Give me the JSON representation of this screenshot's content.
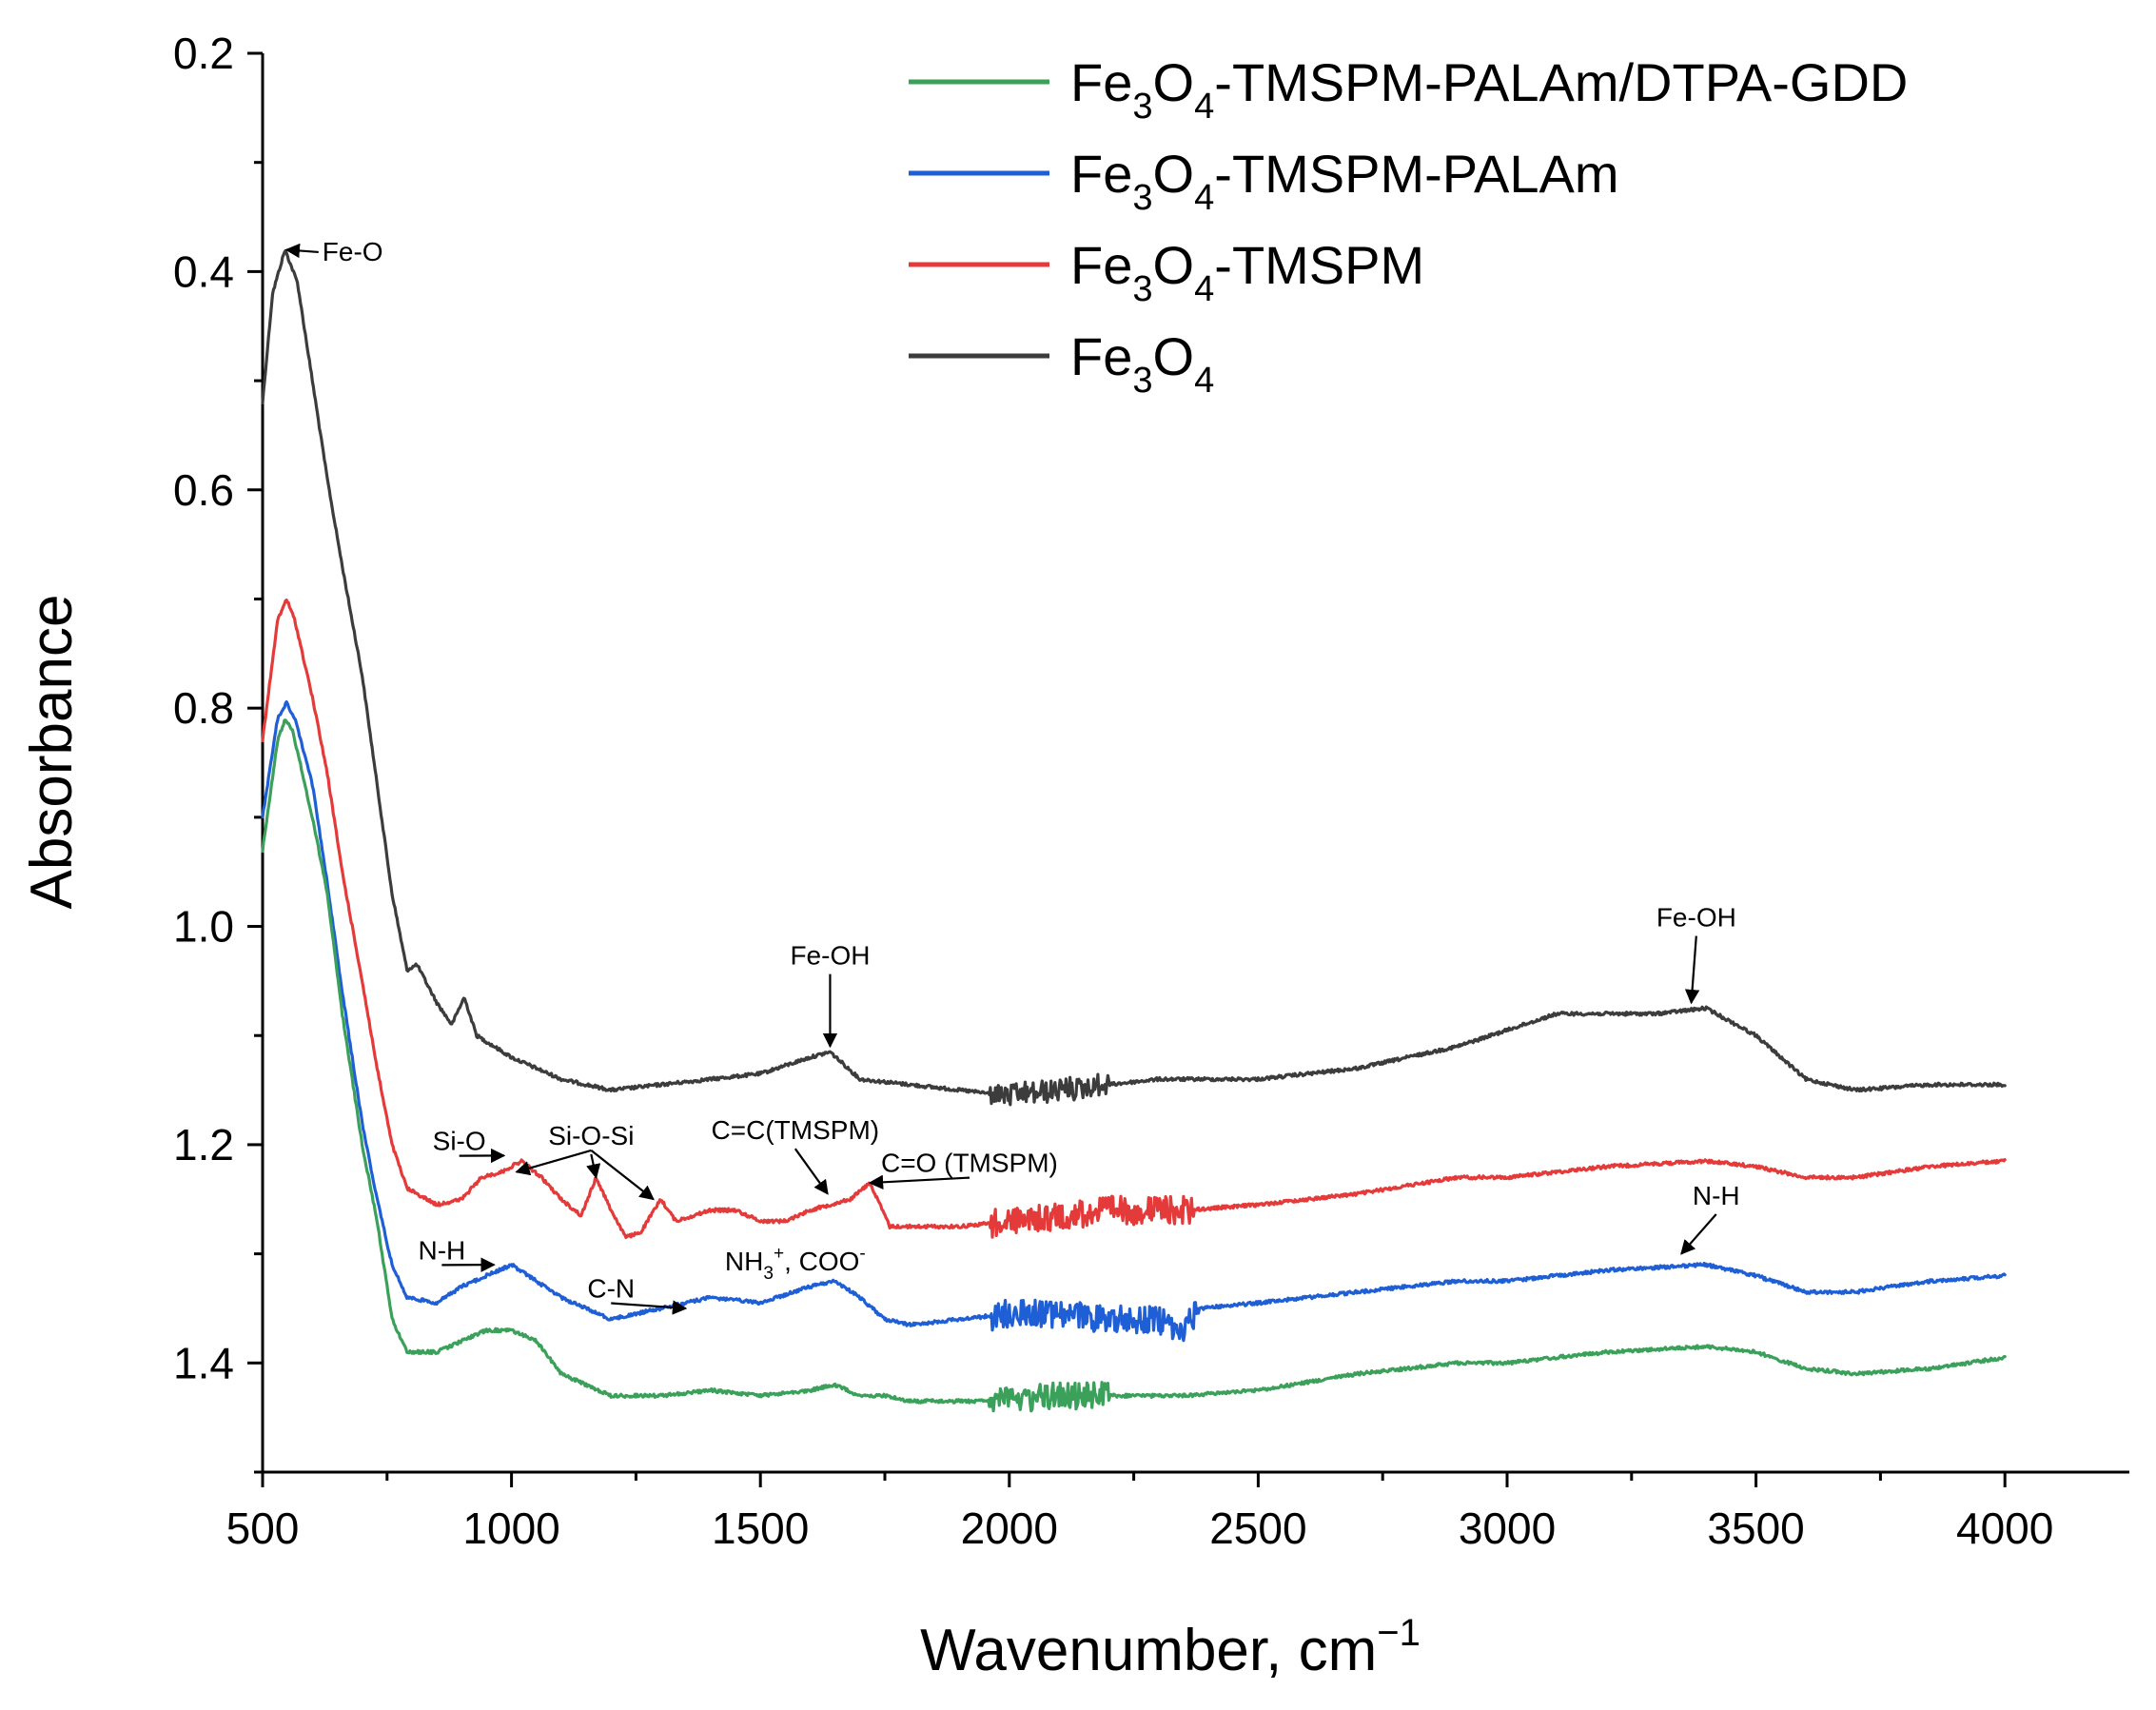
{
  "chart_data": {
    "type": "line",
    "xlabel": "Wavenumber, cm",
    "xlabel_superscript": "−1",
    "ylabel": "Absorbance",
    "xlim": [
      500,
      4250
    ],
    "ylim": [
      1.5,
      0.2
    ],
    "y_inverted": true,
    "xticks": [
      500,
      1000,
      1500,
      2000,
      2500,
      3000,
      3500,
      4000
    ],
    "xtick_labels": [
      "500",
      "1000",
      "1500",
      "2000",
      "2500",
      "3000",
      "3500",
      "4000"
    ],
    "yticks": [
      0.2,
      0.4,
      0.6,
      0.8,
      1.0,
      1.2,
      1.4
    ],
    "ytick_labels": [
      "0.2",
      "0.4",
      "0.6",
      "0.8",
      "1.0",
      "1.2",
      "1.4"
    ],
    "grid": false,
    "legend_position": "top-right",
    "series": [
      {
        "name": "Fe3O4-TMSPM-PALAm/DTPA-GDD",
        "legend_parts": [
          [
            "Fe",
            ""
          ],
          [
            "3",
            "sub"
          ],
          [
            "O",
            ""
          ],
          [
            "4",
            "sub"
          ],
          [
            "-TMSPM-PALAm/DTPA-GDD",
            ""
          ]
        ],
        "color": "#3aa05a",
        "points": [
          [
            500,
            0.93
          ],
          [
            530,
            0.83
          ],
          [
            545,
            0.81
          ],
          [
            560,
            0.82
          ],
          [
            600,
            0.9
          ],
          [
            630,
            0.97
          ],
          [
            660,
            1.08
          ],
          [
            700,
            1.2
          ],
          [
            730,
            1.27
          ],
          [
            760,
            1.36
          ],
          [
            790,
            1.39
          ],
          [
            850,
            1.39
          ],
          [
            900,
            1.38
          ],
          [
            950,
            1.37
          ],
          [
            1000,
            1.37
          ],
          [
            1050,
            1.38
          ],
          [
            1100,
            1.41
          ],
          [
            1150,
            1.42
          ],
          [
            1200,
            1.43
          ],
          [
            1250,
            1.43
          ],
          [
            1300,
            1.43
          ],
          [
            1400,
            1.425
          ],
          [
            1500,
            1.43
          ],
          [
            1600,
            1.425
          ],
          [
            1650,
            1.42
          ],
          [
            1700,
            1.43
          ],
          [
            1750,
            1.43
          ],
          [
            1800,
            1.435
          ],
          [
            1900,
            1.435
          ],
          [
            2000,
            1.435
          ],
          [
            2100,
            1.43
          ],
          [
            2200,
            1.43
          ],
          [
            2350,
            1.43
          ],
          [
            2500,
            1.425
          ],
          [
            2700,
            1.41
          ],
          [
            2900,
            1.4
          ],
          [
            3000,
            1.4
          ],
          [
            3200,
            1.39
          ],
          [
            3400,
            1.385
          ],
          [
            3500,
            1.39
          ],
          [
            3600,
            1.405
          ],
          [
            3700,
            1.41
          ],
          [
            3850,
            1.405
          ],
          [
            4000,
            1.395
          ]
        ]
      },
      {
        "name": "Fe3O4-TMSPM-PALAm",
        "legend_parts": [
          [
            "Fe",
            ""
          ],
          [
            "3",
            "sub"
          ],
          [
            "O",
            ""
          ],
          [
            "4",
            "sub"
          ],
          [
            "-TMSPM-PALAm",
            ""
          ]
        ],
        "color": "#1f5fd6",
        "points": [
          [
            500,
            0.9
          ],
          [
            530,
            0.81
          ],
          [
            548,
            0.795
          ],
          [
            565,
            0.81
          ],
          [
            600,
            0.87
          ],
          [
            630,
            0.96
          ],
          [
            660,
            1.06
          ],
          [
            700,
            1.18
          ],
          [
            730,
            1.25
          ],
          [
            760,
            1.31
          ],
          [
            790,
            1.34
          ],
          [
            850,
            1.345
          ],
          [
            900,
            1.33
          ],
          [
            950,
            1.32
          ],
          [
            1000,
            1.31
          ],
          [
            1050,
            1.325
          ],
          [
            1100,
            1.34
          ],
          [
            1150,
            1.35
          ],
          [
            1200,
            1.36
          ],
          [
            1250,
            1.355
          ],
          [
            1300,
            1.35
          ],
          [
            1350,
            1.345
          ],
          [
            1400,
            1.34
          ],
          [
            1500,
            1.345
          ],
          [
            1600,
            1.33
          ],
          [
            1650,
            1.325
          ],
          [
            1700,
            1.34
          ],
          [
            1750,
            1.36
          ],
          [
            1800,
            1.365
          ],
          [
            1900,
            1.36
          ],
          [
            2000,
            1.355
          ],
          [
            2100,
            1.355
          ],
          [
            2200,
            1.36
          ],
          [
            2300,
            1.36
          ],
          [
            2350,
            1.37
          ],
          [
            2380,
            1.35
          ],
          [
            2500,
            1.345
          ],
          [
            2700,
            1.335
          ],
          [
            2900,
            1.325
          ],
          [
            3000,
            1.325
          ],
          [
            3200,
            1.315
          ],
          [
            3400,
            1.31
          ],
          [
            3500,
            1.32
          ],
          [
            3600,
            1.335
          ],
          [
            3700,
            1.335
          ],
          [
            3850,
            1.325
          ],
          [
            4000,
            1.32
          ]
        ]
      },
      {
        "name": "Fe3O4-TMSPM",
        "legend_parts": [
          [
            "Fe",
            ""
          ],
          [
            "3",
            "sub"
          ],
          [
            "O",
            ""
          ],
          [
            "4",
            "sub"
          ],
          [
            "-TMSPM",
            ""
          ]
        ],
        "color": "#e53a3a",
        "points": [
          [
            500,
            0.83
          ],
          [
            530,
            0.72
          ],
          [
            548,
            0.7
          ],
          [
            565,
            0.72
          ],
          [
            600,
            0.79
          ],
          [
            630,
            0.86
          ],
          [
            660,
            0.95
          ],
          [
            700,
            1.05
          ],
          [
            730,
            1.13
          ],
          [
            760,
            1.2
          ],
          [
            790,
            1.24
          ],
          [
            850,
            1.255
          ],
          [
            900,
            1.25
          ],
          [
            940,
            1.23
          ],
          [
            980,
            1.225
          ],
          [
            1020,
            1.215
          ],
          [
            1060,
            1.23
          ],
          [
            1100,
            1.25
          ],
          [
            1140,
            1.265
          ],
          [
            1170,
            1.23
          ],
          [
            1200,
            1.26
          ],
          [
            1230,
            1.285
          ],
          [
            1260,
            1.28
          ],
          [
            1300,
            1.25
          ],
          [
            1330,
            1.27
          ],
          [
            1400,
            1.26
          ],
          [
            1450,
            1.26
          ],
          [
            1500,
            1.27
          ],
          [
            1550,
            1.27
          ],
          [
            1600,
            1.26
          ],
          [
            1640,
            1.255
          ],
          [
            1680,
            1.25
          ],
          [
            1720,
            1.235
          ],
          [
            1760,
            1.275
          ],
          [
            1800,
            1.275
          ],
          [
            1900,
            1.275
          ],
          [
            2000,
            1.27
          ],
          [
            2100,
            1.265
          ],
          [
            2200,
            1.26
          ],
          [
            2300,
            1.26
          ],
          [
            2360,
            1.26
          ],
          [
            2500,
            1.255
          ],
          [
            2700,
            1.245
          ],
          [
            2900,
            1.23
          ],
          [
            3000,
            1.23
          ],
          [
            3200,
            1.22
          ],
          [
            3400,
            1.215
          ],
          [
            3500,
            1.22
          ],
          [
            3600,
            1.23
          ],
          [
            3700,
            1.23
          ],
          [
            3850,
            1.22
          ],
          [
            4000,
            1.215
          ]
        ]
      },
      {
        "name": "Fe3O4",
        "legend_parts": [
          [
            "Fe",
            ""
          ],
          [
            "3",
            "sub"
          ],
          [
            "O",
            ""
          ],
          [
            "4",
            "sub"
          ]
        ],
        "color": "#3c3c3c",
        "points": [
          [
            500,
            0.52
          ],
          [
            520,
            0.42
          ],
          [
            545,
            0.38
          ],
          [
            570,
            0.41
          ],
          [
            600,
            0.5
          ],
          [
            630,
            0.59
          ],
          [
            660,
            0.67
          ],
          [
            700,
            0.77
          ],
          [
            730,
            0.87
          ],
          [
            760,
            0.97
          ],
          [
            790,
            1.04
          ],
          [
            810,
            1.035
          ],
          [
            850,
            1.07
          ],
          [
            880,
            1.09
          ],
          [
            905,
            1.065
          ],
          [
            930,
            1.1
          ],
          [
            1000,
            1.12
          ],
          [
            1100,
            1.14
          ],
          [
            1200,
            1.15
          ],
          [
            1300,
            1.145
          ],
          [
            1400,
            1.14
          ],
          [
            1500,
            1.135
          ],
          [
            1600,
            1.12
          ],
          [
            1640,
            1.115
          ],
          [
            1700,
            1.14
          ],
          [
            1800,
            1.145
          ],
          [
            1900,
            1.15
          ],
          [
            2000,
            1.155
          ],
          [
            2100,
            1.15
          ],
          [
            2200,
            1.145
          ],
          [
            2300,
            1.14
          ],
          [
            2500,
            1.14
          ],
          [
            2700,
            1.13
          ],
          [
            2900,
            1.11
          ],
          [
            3000,
            1.095
          ],
          [
            3100,
            1.08
          ],
          [
            3300,
            1.08
          ],
          [
            3400,
            1.075
          ],
          [
            3500,
            1.1
          ],
          [
            3600,
            1.14
          ],
          [
            3700,
            1.15
          ],
          [
            3850,
            1.145
          ],
          [
            4000,
            1.145
          ]
        ]
      }
    ],
    "noise_regions": [
      {
        "series": 0,
        "from": 1960,
        "to": 2200,
        "amplitude": 0.012
      },
      {
        "series": 1,
        "from": 1960,
        "to": 2380,
        "amplitude": 0.013
      },
      {
        "series": 2,
        "from": 1960,
        "to": 2370,
        "amplitude": 0.013
      },
      {
        "series": 3,
        "from": 1960,
        "to": 2200,
        "amplitude": 0.01
      }
    ],
    "annotations": [
      {
        "text": "Fe-O",
        "parts": [
          [
            "Fe-O",
            ""
          ]
        ],
        "text_at": [
          620,
          0.39
        ],
        "arrow_to": [
          548,
          0.38
        ],
        "anchor": "start"
      },
      {
        "text": "Fe-OH",
        "parts": [
          [
            "Fe-OH",
            ""
          ]
        ],
        "text_at": [
          1640,
          1.035
        ],
        "arrow_to": [
          1640,
          1.11
        ],
        "anchor": "middle"
      },
      {
        "text": "Fe-OH",
        "parts": [
          [
            "Fe-OH",
            ""
          ]
        ],
        "text_at": [
          3380,
          1.0
        ],
        "arrow_to": [
          3370,
          1.07
        ],
        "anchor": "middle"
      },
      {
        "text": "Si-O",
        "parts": [
          [
            "Si-O",
            ""
          ]
        ],
        "text_at": [
          895,
          1.205
        ],
        "arrow_to": [
          985,
          1.21
        ],
        "anchor": "middle"
      },
      {
        "text": "Si-O-Si",
        "parts": [
          [
            "Si-O-Si",
            ""
          ]
        ],
        "text_at": [
          1160,
          1.2
        ],
        "arrow_to": [
          1010,
          1.225
        ],
        "anchor": "middle"
      },
      {
        "text": "Si-O-Si arrow 2",
        "parts": [],
        "text_at": [
          1160,
          1.2
        ],
        "arrow_to": [
          1170,
          1.23
        ],
        "anchor": "middle"
      },
      {
        "text": "Si-O-Si arrow 3",
        "parts": [],
        "text_at": [
          1160,
          1.2
        ],
        "arrow_to": [
          1285,
          1.25
        ],
        "anchor": "middle"
      },
      {
        "text": "C=C(TMSPM)",
        "parts": [
          [
            "C=C(TMSPM)",
            ""
          ]
        ],
        "text_at": [
          1570,
          1.195
        ],
        "arrow_to": [
          1635,
          1.245
        ],
        "anchor": "middle"
      },
      {
        "text": "C=O (TMSPM)",
        "parts": [
          [
            "C=O (TMSPM)",
            ""
          ]
        ],
        "text_at": [
          1920,
          1.225
        ],
        "arrow_to": [
          1720,
          1.235
        ],
        "anchor": "middle"
      },
      {
        "text": "N-H",
        "parts": [
          [
            "N-H",
            ""
          ]
        ],
        "text_at": [
          860,
          1.305
        ],
        "arrow_to": [
          965,
          1.31
        ],
        "anchor": "middle"
      },
      {
        "text": "C-N",
        "parts": [
          [
            "C-N",
            ""
          ]
        ],
        "text_at": [
          1200,
          1.34
        ],
        "arrow_to": [
          1350,
          1.35
        ],
        "anchor": "middle"
      },
      {
        "text": "NH3+, COO-",
        "parts": [
          [
            "NH",
            ""
          ],
          [
            "3",
            "sub"
          ],
          [
            "+",
            "sup"
          ],
          [
            ", COO",
            ""
          ],
          [
            "-",
            "sup"
          ]
        ],
        "text_at": [
          1570,
          1.315
        ],
        "arrow_to": null,
        "anchor": "middle"
      },
      {
        "text": "N-H",
        "parts": [
          [
            "N-H",
            ""
          ]
        ],
        "text_at": [
          3420,
          1.255
        ],
        "arrow_to": [
          3350,
          1.3
        ],
        "anchor": "middle"
      }
    ]
  }
}
